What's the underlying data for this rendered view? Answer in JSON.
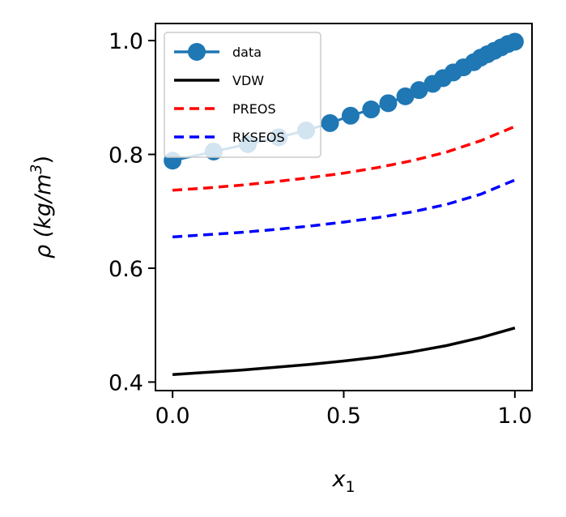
{
  "chart_data": {
    "type": "line",
    "title": "",
    "xlabel": "x",
    "xlabel_sub": "1",
    "ylabel": "ρ (kg/m",
    "ylabel_sup": "3",
    "ylabel_close": ")",
    "xlim": [
      -0.05,
      1.05
    ],
    "ylim": [
      0.385,
      1.03
    ],
    "xticks": [
      0.0,
      0.5,
      1.0
    ],
    "xtick_labels": [
      "0.0",
      "0.5",
      "1.0"
    ],
    "yticks": [
      0.4,
      0.6,
      0.8,
      1.0
    ],
    "ytick_labels": [
      "0.4",
      "0.6",
      "0.8",
      "1.0"
    ],
    "grid": false,
    "legend_position": "upper-left",
    "series": [
      {
        "name": "data",
        "style": "marker-line",
        "color": "#1f77b4",
        "x": [
          0.0,
          0.12,
          0.22,
          0.31,
          0.39,
          0.46,
          0.52,
          0.58,
          0.63,
          0.68,
          0.72,
          0.76,
          0.79,
          0.82,
          0.85,
          0.88,
          0.9,
          0.92,
          0.94,
          0.96,
          0.98,
          1.0
        ],
        "y": [
          0.789,
          0.805,
          0.818,
          0.83,
          0.842,
          0.855,
          0.868,
          0.879,
          0.89,
          0.902,
          0.913,
          0.924,
          0.934,
          0.944,
          0.953,
          0.962,
          0.97,
          0.976,
          0.982,
          0.988,
          0.994,
          0.998
        ]
      },
      {
        "name": "VDW",
        "style": "solid",
        "color": "#000000",
        "x": [
          0.0,
          0.1,
          0.2,
          0.3,
          0.4,
          0.5,
          0.6,
          0.7,
          0.8,
          0.9,
          1.0
        ],
        "y": [
          0.413,
          0.417,
          0.421,
          0.426,
          0.431,
          0.437,
          0.444,
          0.453,
          0.464,
          0.478,
          0.495
        ]
      },
      {
        "name": "PREOS",
        "style": "dashed",
        "color": "#ff0000",
        "x": [
          0.0,
          0.1,
          0.2,
          0.3,
          0.4,
          0.5,
          0.6,
          0.7,
          0.8,
          0.9,
          1.0
        ],
        "y": [
          0.737,
          0.741,
          0.746,
          0.752,
          0.759,
          0.767,
          0.777,
          0.789,
          0.804,
          0.824,
          0.849
        ]
      },
      {
        "name": "RKSEOS",
        "style": "dashed",
        "color": "#0000ff",
        "x": [
          0.0,
          0.1,
          0.2,
          0.3,
          0.4,
          0.5,
          0.6,
          0.7,
          0.8,
          0.9,
          1.0
        ],
        "y": [
          0.655,
          0.659,
          0.663,
          0.668,
          0.674,
          0.681,
          0.689,
          0.699,
          0.712,
          0.73,
          0.755
        ]
      }
    ]
  }
}
